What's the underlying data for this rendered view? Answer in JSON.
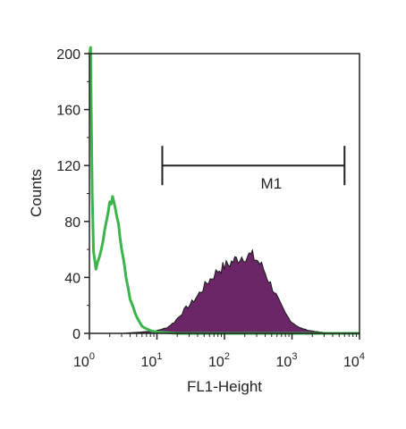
{
  "chart_data": {
    "type": "area",
    "title": "",
    "xlabel": "FL1-Height",
    "ylabel": "Counts",
    "x_scale": "log",
    "xlim": [
      1,
      10000
    ],
    "ylim": [
      0,
      200
    ],
    "x_ticks": [
      {
        "value": 1,
        "base": "10",
        "exp": "0"
      },
      {
        "value": 10,
        "base": "10",
        "exp": "1"
      },
      {
        "value": 100,
        "base": "10",
        "exp": "2"
      },
      {
        "value": 1000,
        "base": "10",
        "exp": "3"
      },
      {
        "value": 10000,
        "base": "10",
        "exp": "4"
      }
    ],
    "y_ticks": [
      {
        "value": 0,
        "label": "0"
      },
      {
        "value": 40,
        "label": "40"
      },
      {
        "value": 80,
        "label": "80"
      },
      {
        "value": 120,
        "label": "120"
      },
      {
        "value": 160,
        "label": "160"
      },
      {
        "value": 200,
        "label": "200"
      }
    ],
    "grid": false,
    "series": [
      {
        "kind": "filled-histogram",
        "color": "#6b2668",
        "edge_color": "#1a1a1a",
        "points": [
          [
            1,
            0
          ],
          [
            3,
            0
          ],
          [
            6,
            1
          ],
          [
            10,
            2
          ],
          [
            14,
            4
          ],
          [
            18,
            8
          ],
          [
            22,
            13
          ],
          [
            27,
            18
          ],
          [
            33,
            22
          ],
          [
            40,
            27
          ],
          [
            48,
            32
          ],
          [
            55,
            36
          ],
          [
            65,
            40
          ],
          [
            80,
            45
          ],
          [
            100,
            48
          ],
          [
            120,
            50
          ],
          [
            150,
            53
          ],
          [
            180,
            55
          ],
          [
            220,
            56
          ],
          [
            260,
            55
          ],
          [
            310,
            52
          ],
          [
            380,
            46
          ],
          [
            450,
            38
          ],
          [
            550,
            30
          ],
          [
            650,
            22
          ],
          [
            800,
            14
          ],
          [
            1000,
            8
          ],
          [
            1300,
            4
          ],
          [
            1800,
            2
          ],
          [
            2500,
            1
          ],
          [
            4000,
            0
          ],
          [
            10000,
            0
          ]
        ]
      },
      {
        "kind": "outline-histogram",
        "color": "#3bb54a",
        "points": [
          [
            1,
            200
          ],
          [
            1.04,
            200
          ],
          [
            1.07,
            150
          ],
          [
            1.1,
            100
          ],
          [
            1.15,
            60
          ],
          [
            1.25,
            45
          ],
          [
            1.4,
            55
          ],
          [
            1.6,
            68
          ],
          [
            1.8,
            80
          ],
          [
            2.0,
            92
          ],
          [
            2.2,
            96
          ],
          [
            2.4,
            92
          ],
          [
            2.7,
            80
          ],
          [
            3.0,
            60
          ],
          [
            3.5,
            40
          ],
          [
            4.0,
            25
          ],
          [
            5.0,
            12
          ],
          [
            6.0,
            5
          ],
          [
            8.0,
            2
          ],
          [
            10,
            1
          ],
          [
            20,
            0
          ],
          [
            10000,
            0
          ]
        ]
      }
    ],
    "annotations": [
      {
        "kind": "gate",
        "label": "M1",
        "x_start": 12,
        "x_end": 6000,
        "y": 120
      }
    ]
  }
}
